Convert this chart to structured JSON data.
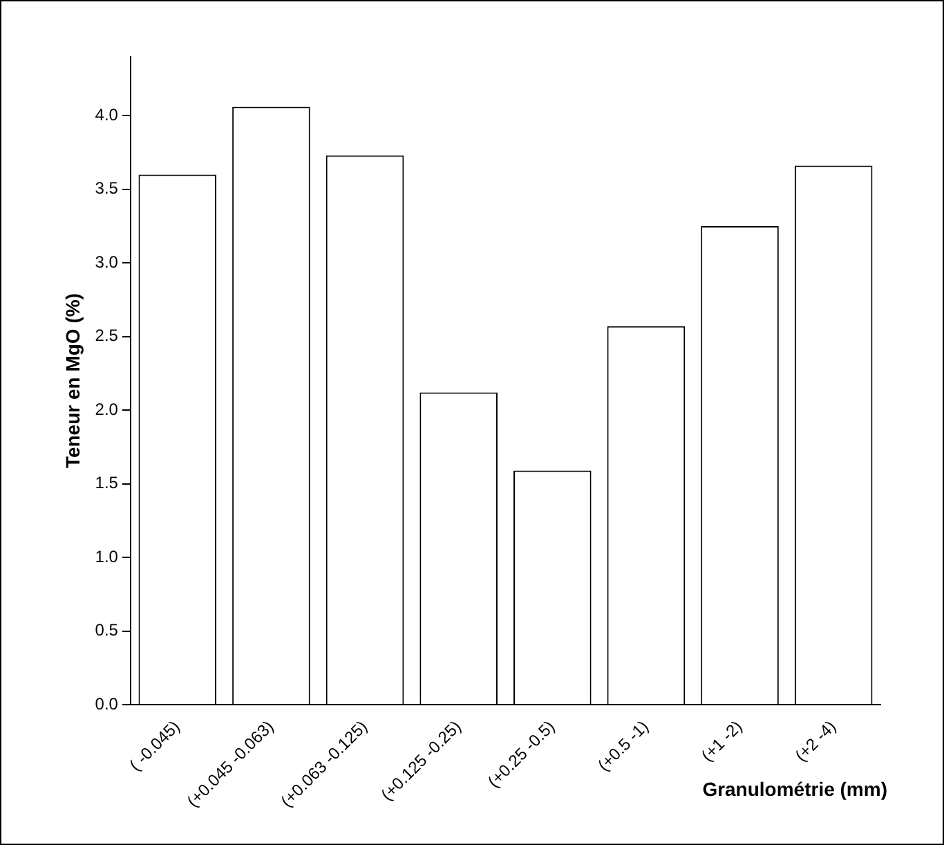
{
  "chart_data": {
    "type": "bar",
    "xlabel": "Granulométrie (mm)",
    "ylabel": "Teneur en MgO (%)",
    "categories": [
      "( -0.045)",
      "(+0.045 -0.063)",
      "(+0.063 -0.125)",
      "(+0.125 -0.25)",
      "(+0.25 -0.5)",
      "(+0.5 -1)",
      "(+1 -2)",
      "(+2 -4)"
    ],
    "values": [
      3.6,
      4.06,
      3.73,
      2.12,
      1.59,
      2.57,
      3.25,
      3.66
    ],
    "color": "#ffffff",
    "ylim": [
      0,
      4.4
    ],
    "yticks": [
      {
        "value": 0,
        "label": "0.0"
      },
      {
        "value": 0.5,
        "label": "0.5"
      },
      {
        "value": 1,
        "label": "1.0"
      },
      {
        "value": 1.5,
        "label": "1.5"
      },
      {
        "value": 2,
        "label": "2.0"
      },
      {
        "value": 2.5,
        "label": "2.5"
      },
      {
        "value": 3,
        "label": "3.0"
      },
      {
        "value": 3.5,
        "label": "3.5"
      },
      {
        "value": 4,
        "label": "4.0"
      }
    ],
    "grid": false,
    "legend": false
  }
}
